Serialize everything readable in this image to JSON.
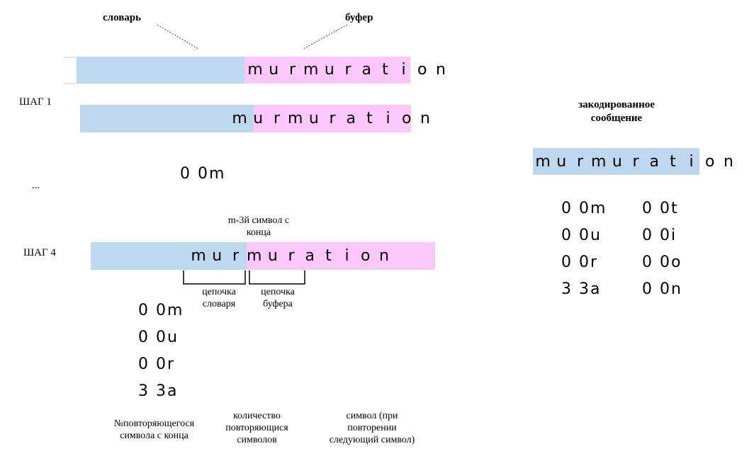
{
  "labels": {
    "dictionary": "словарь",
    "buffer": "буфер",
    "step1": "ШАГ 1",
    "ellipsis": "...",
    "step4": "ШАГ 4",
    "encoded_title_line1": "закодированное",
    "encoded_title_line2": "сообщение",
    "mth_symbol_line1": "m-3й символ с",
    "mth_symbol_line2": "конца",
    "dict_chain_line1": "цепочка",
    "dict_chain_line2": "словаря",
    "buf_chain_line1": "цепочка",
    "buf_chain_line2": "буфера",
    "legend_col1_line1": "№повторяющегося",
    "legend_col1_line2": "символа с конца",
    "legend_col2_line1": "количество",
    "legend_col2_line2": "повторяющися",
    "legend_col2_line3": "символов",
    "legend_col3_line1": "символ (при",
    "legend_col3_line2": "повторении",
    "legend_col3_line3": "следующий символ)"
  },
  "word": [
    "m",
    "u",
    "r",
    "m",
    "u",
    "r",
    "a",
    "t",
    "i",
    "o",
    "n"
  ],
  "step1_code": "0 0m",
  "step4_codes": [
    "0 0m",
    "0 0u",
    "0 0r",
    "3 3a"
  ],
  "encoded_codes_col1": [
    "0 0m",
    "0 0u",
    "0 0r",
    "3 3a"
  ],
  "encoded_codes_col2": [
    "0 0t",
    "0 0i",
    "0 0o",
    "0 0n"
  ],
  "colors": {
    "dictionary": "#bdd7ee",
    "buffer": "#fcc8fb"
  }
}
